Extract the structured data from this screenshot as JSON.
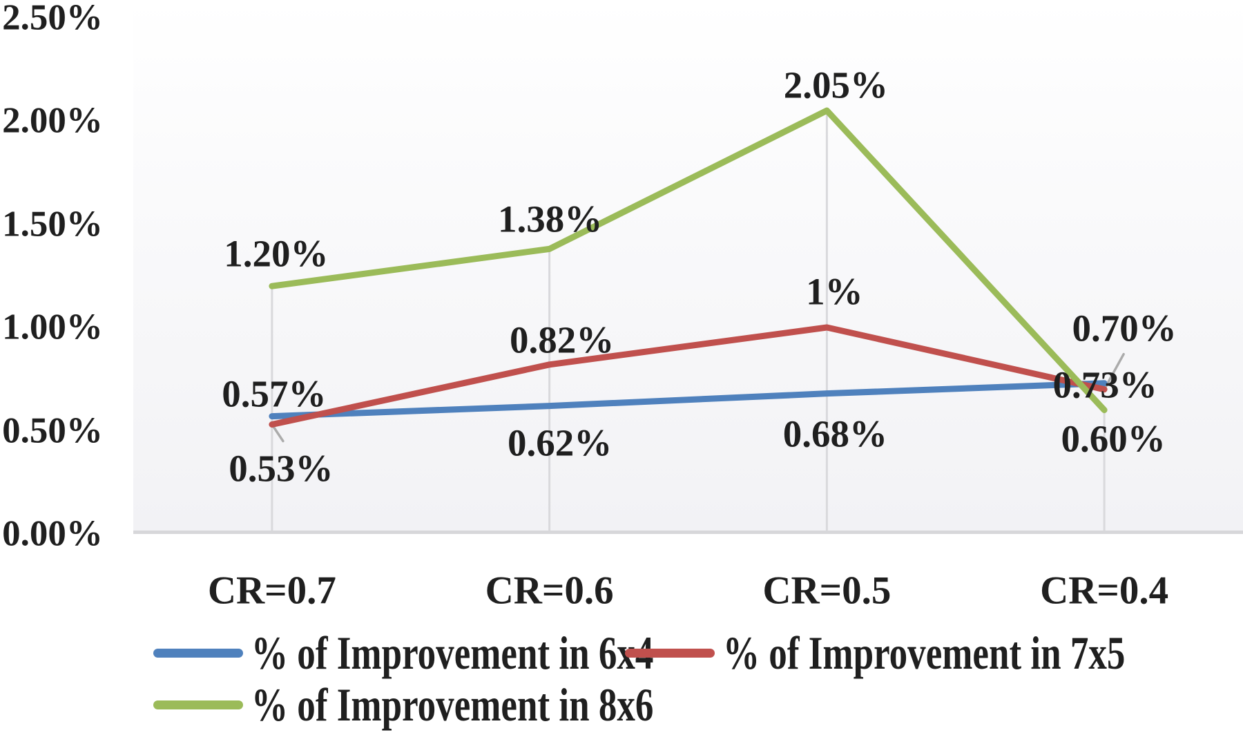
{
  "chart_data": {
    "type": "line",
    "title": "",
    "xlabel": "",
    "ylabel": "",
    "categories": [
      "CR=0.7",
      "CR=0.6",
      "CR=0.5",
      "CR=0.4"
    ],
    "y_ticks": [
      "2.50%",
      "2.00%",
      "1.50%",
      "1.00%",
      "0.50%",
      "0.00%"
    ],
    "y_tick_values": [
      2.5,
      2.0,
      1.5,
      1.0,
      0.5,
      0.0
    ],
    "ylim": [
      0,
      2.5
    ],
    "grid": "vertical-drop-lines-per-category",
    "legend_position": "bottom",
    "series": [
      {
        "name": "% of Improvement in 6x4",
        "color": "#4f81bd",
        "values": [
          0.57,
          0.62,
          0.68,
          0.73
        ],
        "labels": [
          "0.57%",
          "0.62%",
          "0.68%",
          "0.73%"
        ],
        "label_offsets": [
          [
            3,
            -33
          ],
          [
            15,
            53
          ],
          [
            12,
            58
          ],
          [
            1,
            2
          ]
        ],
        "leaders": []
      },
      {
        "name": "% of Improvement in 7x5",
        "color": "#c0504d",
        "values": [
          0.53,
          0.82,
          1.0,
          0.7
        ],
        "labels": [
          "0.53%",
          "0.82%",
          "1%",
          "0.70%"
        ],
        "label_offsets": [
          [
            13,
            63
          ],
          [
            18,
            -36
          ],
          [
            11,
            -52
          ],
          [
            29,
            -89
          ]
        ],
        "leaders": [
          {
            "index": 0,
            "to": [
              16,
              24
            ]
          },
          {
            "index": 3,
            "to": [
              28,
              -51
            ]
          }
        ]
      },
      {
        "name": "% of Improvement in 8x6",
        "color": "#9bbb59",
        "values": [
          1.2,
          1.38,
          2.05,
          0.6
        ],
        "labels": [
          "1.20%",
          "1.38%",
          "2.05%",
          "0.60%"
        ],
        "label_offsets": [
          [
            6,
            -47
          ],
          [
            1,
            -43
          ],
          [
            13,
            -37
          ],
          [
            13,
            41
          ]
        ],
        "leaders": []
      }
    ],
    "colors": {
      "axis_line": "#d7d7da",
      "drop_line": "#d9d9dc",
      "leader_line": "#ababab",
      "plot_bg_top": "#ffffff",
      "plot_bg_mid": "#fbfbfc",
      "plot_bg_bottom": "#f2f2f5",
      "text": "#1f1f1f"
    }
  }
}
